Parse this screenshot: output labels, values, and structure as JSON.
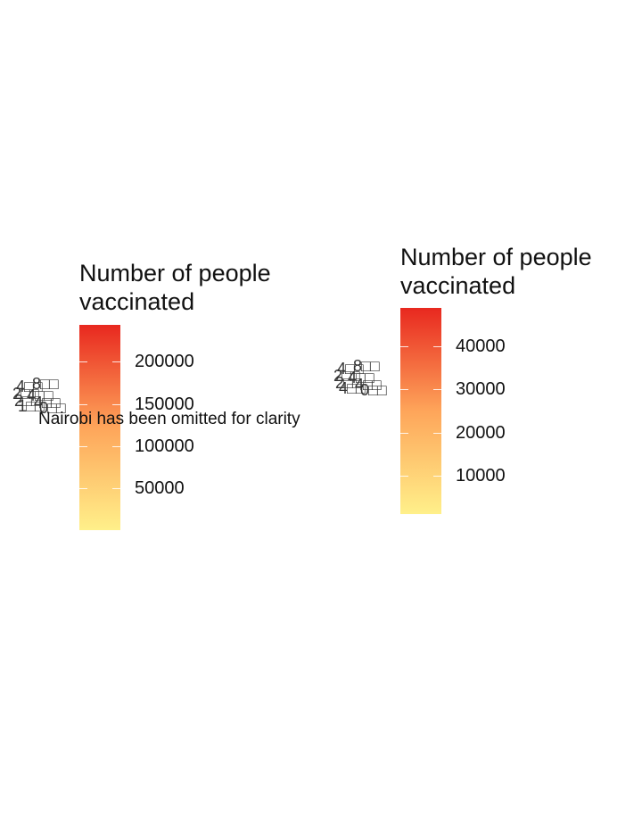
{
  "colors": {
    "gradient_low": "#fff08a",
    "gradient_mid": "#fea55a",
    "gradient_high": "#e8281f",
    "text": "#111111",
    "map_label_text": "#333333"
  },
  "chart_data": [
    {
      "type": "heatmap",
      "legend_title": [
        "Number of people",
        "vaccinated"
      ],
      "scale_min": 0,
      "scale_max": 244000,
      "ticks": [
        50000,
        100000,
        150000,
        200000
      ],
      "tick_labels": [
        "50000",
        "100000",
        "150000",
        "200000"
      ],
      "annotation": "Nairobi has been omitted for clarity",
      "overlapping_region_labels": [
        "4",
        "8",
        "2",
        "4",
        "2",
        "4",
        "1",
        "0"
      ]
    },
    {
      "type": "heatmap",
      "legend_title": [
        "Number of people",
        "vaccinated"
      ],
      "scale_min": 1000,
      "scale_max": 49000,
      "ticks": [
        10000,
        20000,
        30000,
        40000
      ],
      "tick_labels": [
        "10000",
        "20000",
        "30000",
        "40000"
      ],
      "overlapping_region_labels": [
        "4",
        "8",
        "2",
        "4",
        "2",
        "4",
        "4",
        "0"
      ]
    }
  ]
}
